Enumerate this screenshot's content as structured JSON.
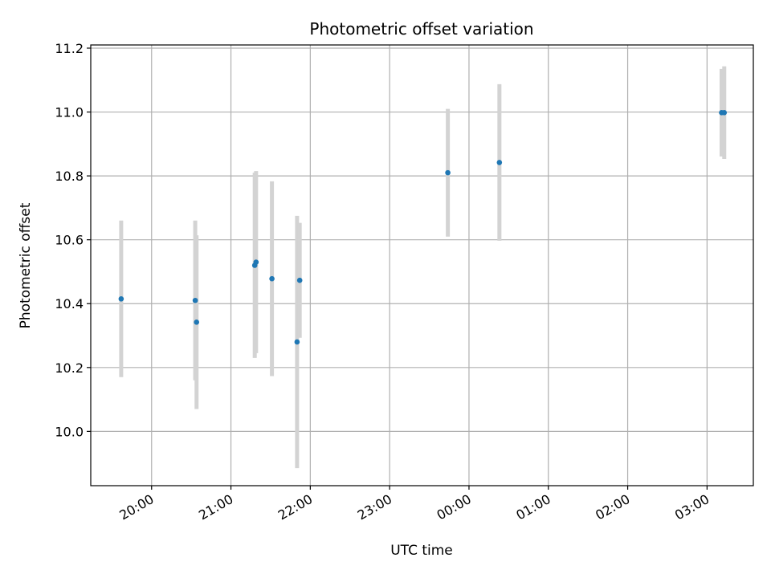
{
  "chart_data": {
    "type": "scatter",
    "title": "Photometric offset variation",
    "xlabel": "UTC time",
    "ylabel": "Photometric offset",
    "x_axis_type": "time",
    "xlim": [
      "2000-01-01T19:14",
      "2000-01-02T03:35"
    ],
    "ylim": [
      9.83,
      11.21
    ],
    "x_ticks": [
      {
        "t": "2000-01-01T20:00",
        "label": "20:00"
      },
      {
        "t": "2000-01-01T21:00",
        "label": "21:00"
      },
      {
        "t": "2000-01-01T22:00",
        "label": "22:00"
      },
      {
        "t": "2000-01-01T23:00",
        "label": "23:00"
      },
      {
        "t": "2000-01-02T00:00",
        "label": "00:00"
      },
      {
        "t": "2000-01-02T01:00",
        "label": "01:00"
      },
      {
        "t": "2000-01-02T02:00",
        "label": "02:00"
      },
      {
        "t": "2000-01-02T03:00",
        "label": "03:00"
      }
    ],
    "y_ticks": [
      {
        "v": 10.0,
        "label": "10.0"
      },
      {
        "v": 10.2,
        "label": "10.2"
      },
      {
        "v": 10.4,
        "label": "10.4"
      },
      {
        "v": 10.6,
        "label": "10.6"
      },
      {
        "v": 10.8,
        "label": "10.8"
      },
      {
        "v": 11.0,
        "label": "11.0"
      },
      {
        "v": 11.2,
        "label": "11.2"
      }
    ],
    "grid": true,
    "point_color": "#1f77b4",
    "errorbar_color": "#d3d3d3",
    "points": [
      {
        "t": "2000-01-01T19:37",
        "y": 10.415,
        "err": 0.245
      },
      {
        "t": "2000-01-01T20:33",
        "y": 10.41,
        "err": 0.25
      },
      {
        "t": "2000-01-01T20:34",
        "y": 10.342,
        "err": 0.272
      },
      {
        "t": "2000-01-01T21:18",
        "y": 10.52,
        "err": 0.29
      },
      {
        "t": "2000-01-01T21:19",
        "y": 10.53,
        "err": 0.285
      },
      {
        "t": "2000-01-01T21:31",
        "y": 10.478,
        "err": 0.305
      },
      {
        "t": "2000-01-01T21:50",
        "y": 10.28,
        "err": 0.395
      },
      {
        "t": "2000-01-01T21:52",
        "y": 10.473,
        "err": 0.18
      },
      {
        "t": "2000-01-01T23:44",
        "y": 10.81,
        "err": 0.2
      },
      {
        "t": "2000-01-02T00:23",
        "y": 10.842,
        "err": 0.245
      },
      {
        "t": "2000-01-02T03:11",
        "y": 10.998,
        "err": 0.137
      },
      {
        "t": "2000-01-02T03:13",
        "y": 10.998,
        "err": 0.145
      }
    ]
  }
}
